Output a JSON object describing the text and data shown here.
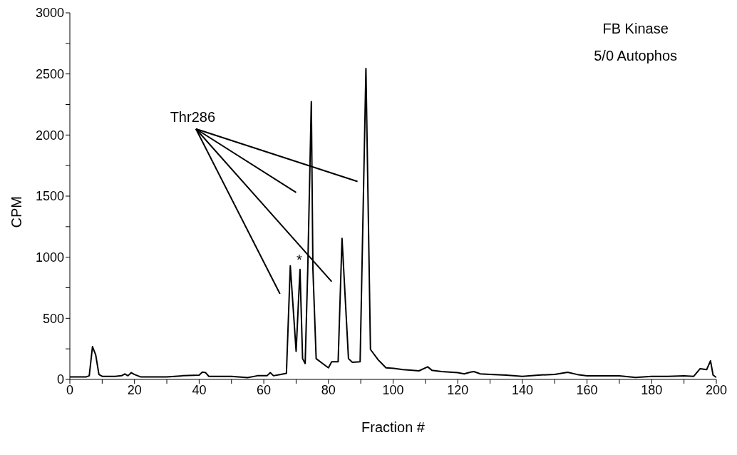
{
  "chart_data": {
    "type": "line",
    "xlabel": "Fraction #",
    "ylabel": "CPM",
    "annotations": [
      "FB Kinase",
      "5/0 Autophos",
      "Thr286",
      "*"
    ],
    "x": [
      0,
      2,
      4,
      5,
      6,
      7,
      8,
      9,
      10,
      12,
      14,
      16,
      17,
      18,
      19,
      20,
      22,
      25,
      30,
      35,
      40,
      41,
      42,
      43,
      45,
      50,
      55,
      58,
      60,
      61,
      62,
      63,
      65,
      67,
      68.2,
      70,
      71.2,
      72,
      72.8,
      73.6,
      74.7,
      75.2,
      76.2,
      78.2,
      80,
      81,
      83,
      84.2,
      86.2,
      87.4,
      89.8,
      91.6,
      93,
      95.4,
      97.8,
      100.2,
      103,
      106,
      108,
      110.7,
      112,
      115,
      120,
      122,
      124,
      125,
      127,
      130,
      135,
      140,
      145,
      150,
      154,
      157,
      160,
      165,
      170,
      175,
      180,
      185,
      190,
      193,
      195,
      197,
      198.2,
      199,
      200
    ],
    "series": [
      {
        "color": "#000000",
        "values": [
          20,
          20,
          20,
          20,
          30,
          268,
          200,
          40,
          25,
          25,
          25,
          30,
          45,
          30,
          55,
          40,
          20,
          20,
          20,
          30,
          35,
          60,
          55,
          25,
          25,
          25,
          15,
          30,
          30,
          30,
          55,
          30,
          40,
          50,
          930,
          230,
          900,
          170,
          130,
          900,
          2273,
          900,
          170,
          130,
          95,
          145,
          145,
          1154,
          170,
          140,
          145,
          2545,
          245,
          160,
          95,
          90,
          80,
          75,
          70,
          103,
          75,
          64,
          55,
          45,
          60,
          64,
          45,
          41,
          35,
          25,
          35,
          41,
          58,
          40,
          29,
          29,
          29,
          16,
          25,
          25,
          29,
          25,
          88,
          80,
          152,
          35,
          16
        ]
      }
    ],
    "xlim": [
      0,
      200
    ],
    "xticks": [
      0,
      {
        "value": 10,
        "label": null
      },
      20,
      {
        "value": 30,
        "label": null
      },
      40,
      {
        "value": 50,
        "label": null
      },
      60,
      {
        "value": 70,
        "label": null
      },
      80,
      {
        "value": 90,
        "label": null
      },
      100,
      {
        "value": 110,
        "label": null
      },
      120,
      {
        "value": 130,
        "label": null
      },
      140,
      {
        "value": 150,
        "label": null
      },
      160,
      {
        "value": 170,
        "label": null
      },
      180,
      {
        "value": 190,
        "label": null
      },
      200
    ],
    "ylim": [
      0,
      3000
    ],
    "yticks": [
      0,
      {
        "value": 250,
        "label": null
      },
      500,
      {
        "value": 750,
        "label": null
      },
      1000,
      {
        "value": 1250,
        "label": null
      },
      1500,
      {
        "value": 1750,
        "label": null
      },
      2000,
      {
        "value": 2250,
        "label": null
      },
      2500,
      {
        "value": 2750,
        "label": null
      },
      3000
    ]
  }
}
